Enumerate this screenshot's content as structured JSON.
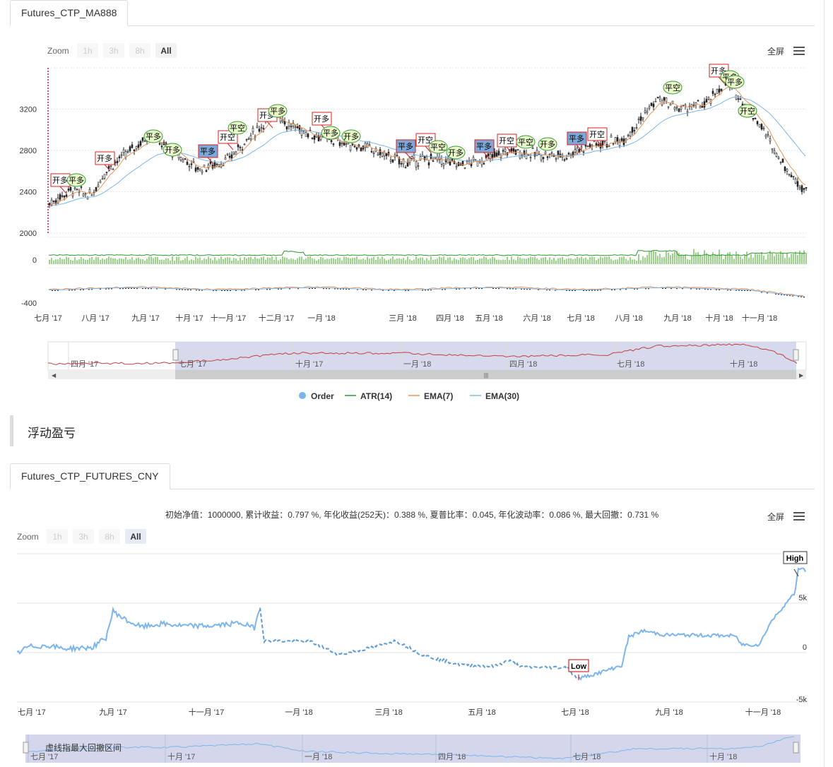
{
  "chart1": {
    "tab": "Futures_CTP_MA888",
    "zoom": {
      "label": "Zoom",
      "buttons": [
        "1h",
        "3h",
        "8h",
        "All"
      ],
      "active": "All"
    },
    "fullscreen": "全屏",
    "yticks_main": [
      "3200",
      "2800",
      "2400",
      "2000"
    ],
    "yticks_atr": [
      "0"
    ],
    "yticks_ema": [
      "-400"
    ],
    "xticks": [
      "七月 '17",
      "八月 '17",
      "九月 '17",
      "十月 '17",
      "十一月 '17",
      "十二月 '17",
      "一月 '18",
      "三月 '18",
      "四月 '18",
      "五月 '18",
      "六月 '18",
      "七月 '18",
      "八月 '18",
      "九月 '18",
      "十月 '18",
      "十一月 '18"
    ],
    "navigator_ticks": [
      "四月 '17",
      "七月 '17",
      "十月 '17",
      "一月 '18",
      "四月 '18",
      "七月 '18",
      "十月 '18"
    ],
    "legend": [
      "Order",
      "ATR(14)",
      "EMA(7)",
      "EMA(30)"
    ],
    "flags": [
      "开多",
      "平多",
      "开多",
      "平多",
      "开多",
      "平多",
      "开空",
      "平空",
      "开多",
      "平多",
      "开多",
      "平多",
      "开多",
      "平多",
      "开空",
      "平空",
      "开多",
      "平多",
      "开空",
      "平空",
      "开多",
      "平多",
      "开空",
      "平空",
      "开多",
      "平多",
      "开多",
      "平多",
      "开空"
    ]
  },
  "section_title": "浮动盈亏",
  "chart2": {
    "tab": "Futures_CTP_FUTURES_CNY",
    "stats": "初始净值：1000000, 累计收益：0.797 %, 年化收益(252天)：0.388 %, 夏普比率：0.045, 年化波动率：0.086 %, 最大回撤：0.731 %",
    "zoom": {
      "label": "Zoom",
      "buttons": [
        "1h",
        "3h",
        "8h",
        "All"
      ],
      "active": "All"
    },
    "fullscreen": "全屏",
    "yticks": [
      "5k",
      "0",
      "-5k"
    ],
    "xticks": [
      "七月 '17",
      "九月 '17",
      "十一月 '17",
      "一月 '18",
      "三月 '18",
      "五月 '18",
      "七月 '18",
      "九月 '18",
      "十一月 '18"
    ],
    "navigator_ticks": [
      "七月 '17",
      "十月 '17",
      "一月 '18",
      "四月 '18",
      "七月 '18",
      "十月 '18"
    ],
    "navigator_note": "虚线指最大回撤区间",
    "high_label": "High",
    "low_label": "Low"
  },
  "colors": {
    "candle": "#222222",
    "atr": "#2a9a2a",
    "ema7": "#e8935a",
    "ema30": "#7cb5ec",
    "profit": "#7cb5ec",
    "navigator": "#c24040",
    "flag_red": "#d62020",
    "flag_blue": "#7da7d9",
    "flag_green": "#b0e06a"
  },
  "chart_data": [
    {
      "type": "candlestick",
      "title": "Futures_CTP_MA888",
      "ylim": [
        2000,
        3600
      ],
      "x_range": [
        "2017-07",
        "2018-12"
      ],
      "key_levels": {
        "start": 2300,
        "2017-09": 2950,
        "2017-12": 3200,
        "2018-04": 2650,
        "2018-09": 3300,
        "2018-10": 3550,
        "end": 2400
      },
      "series": [
        {
          "name": "ATR(14)"
        },
        {
          "name": "EMA(7)"
        },
        {
          "name": "EMA(30)"
        },
        {
          "name": "Order"
        }
      ]
    },
    {
      "type": "line",
      "title": "浮动盈亏",
      "ylim": [
        -5000,
        10000
      ],
      "x_range": [
        "2017-07",
        "2018-12"
      ],
      "high": 8000,
      "low": -2600
    }
  ]
}
